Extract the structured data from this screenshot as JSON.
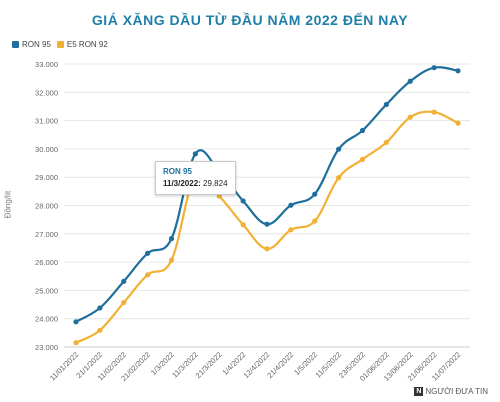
{
  "chart_data": {
    "type": "line",
    "title": "GIÁ XĂNG DẦU TỪ ĐẦU NĂM 2022 ĐẾN NAY",
    "ylabel": "Đồng/lít",
    "xlabel": "",
    "ylim": [
      23000,
      33000
    ],
    "yticks": [
      "23.000",
      "24.000",
      "25.000",
      "26.000",
      "27.000",
      "28.000",
      "29.000",
      "30.000",
      "31.000",
      "32.000",
      "33.000"
    ],
    "categories": [
      "11/01/2022",
      "21/1/2022",
      "11/02/2022",
      "21/02/2022",
      "1/3/2022",
      "11/3/2022",
      "21/3/2022",
      "1/4/2022",
      "12/4/2022",
      "21/4/2022",
      "1/5/2022",
      "11/5/2022",
      "23/5/2022",
      "01/06/2022",
      "13/06/2022",
      "21/06/2022",
      "11/07/2022"
    ],
    "series": [
      {
        "name": "RON 95",
        "color": "#1f6f9c",
        "values": [
          23890,
          24380,
          25320,
          26310,
          26830,
          29824,
          29200,
          28160,
          27340,
          28010,
          28400,
          29990,
          30650,
          31570,
          32390,
          32870,
          32760
        ]
      },
      {
        "name": "E5 RON 92",
        "color": "#f2b134",
        "values": [
          23150,
          23590,
          24570,
          25550,
          26070,
          29060,
          28330,
          27320,
          26470,
          27140,
          27450,
          28980,
          29630,
          30230,
          31120,
          31300,
          30910
        ]
      }
    ],
    "grid": true,
    "legend": "top-left",
    "tooltip": {
      "series": "RON 95",
      "date": "11/3/2022:",
      "value": "29.824"
    }
  },
  "watermark": {
    "logo": "N",
    "text": "NGƯỜI ĐƯA TIN"
  }
}
